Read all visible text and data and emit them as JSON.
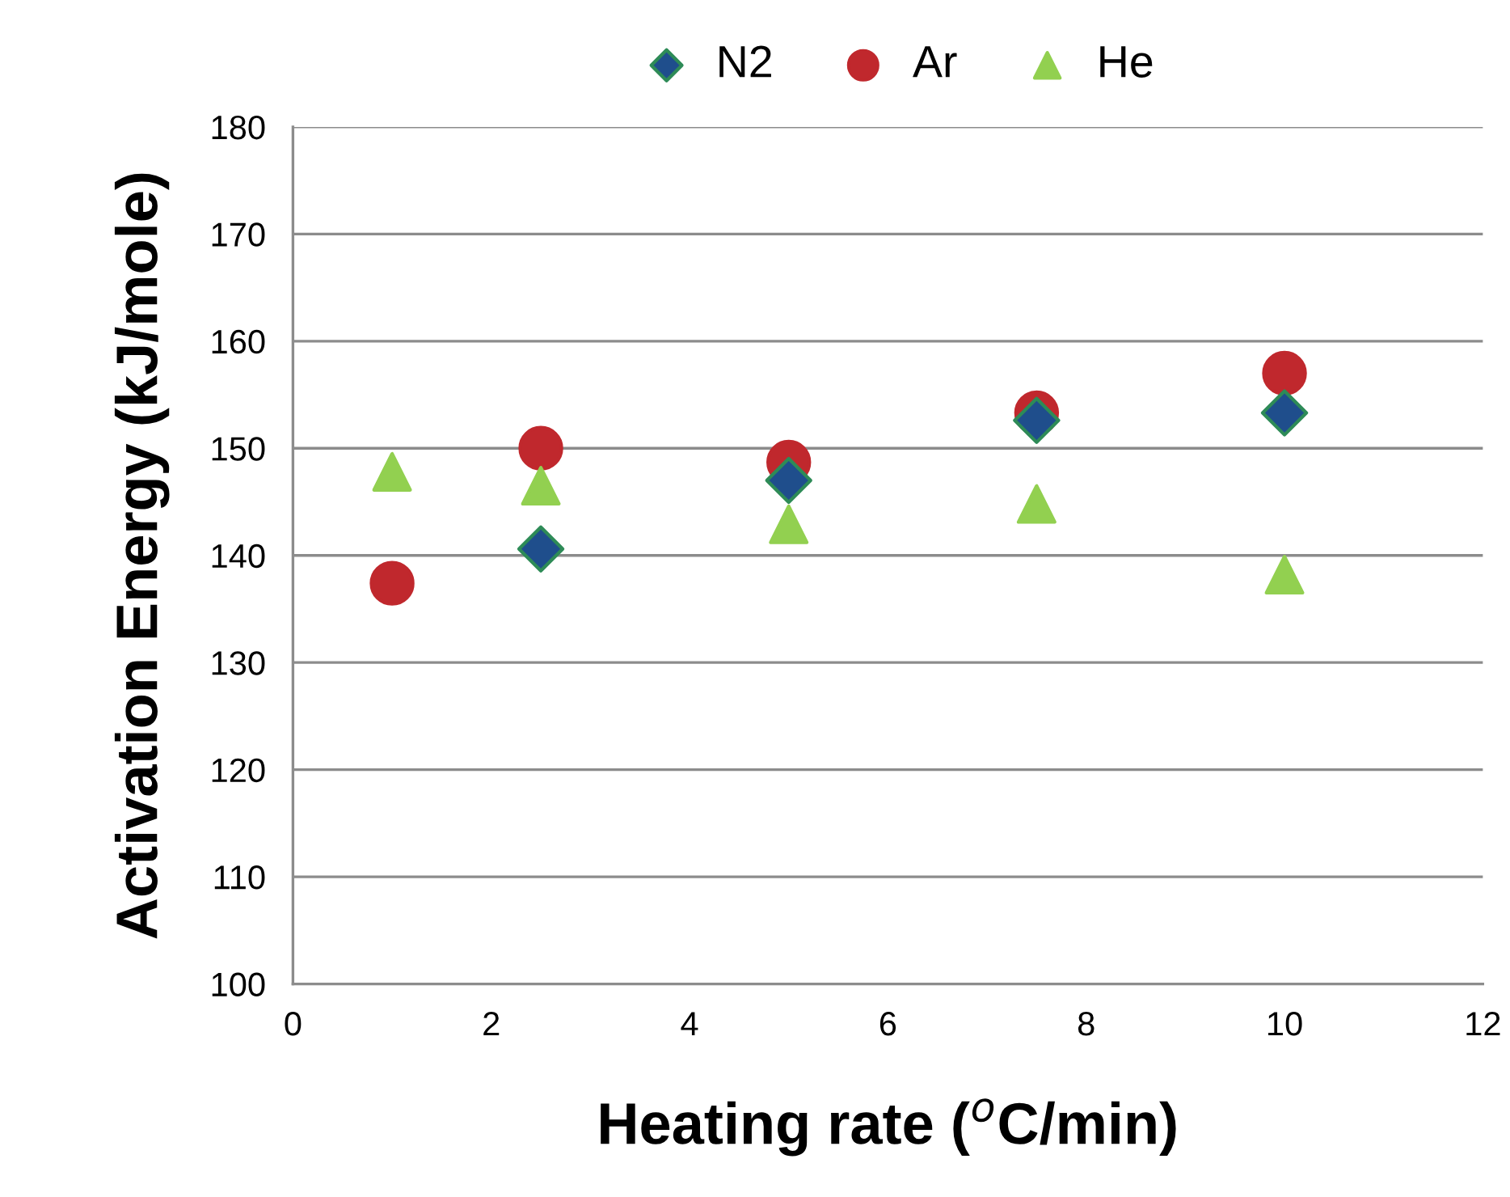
{
  "chart_data": {
    "type": "scatter",
    "xlabel": "Heating rate ($^{o}$C/min)",
    "ylabel": "Activation Energy (kJ/mole)",
    "x": [
      1,
      2.5,
      5,
      7.5,
      10
    ],
    "series": [
      {
        "name": "N2",
        "color": "#1f4e8c",
        "marker": "diamond",
        "values": [
          null,
          140.6,
          147,
          152.6,
          153.3
        ]
      },
      {
        "name": "Ar",
        "color": "#c0282d",
        "marker": "circle",
        "values": [
          137.4,
          150,
          148.7,
          153.3,
          157
        ]
      },
      {
        "name": "He",
        "color": "#92d050",
        "marker": "triangle",
        "values": [
          147.8,
          146.5,
          142.9,
          144.8,
          138.2
        ]
      }
    ],
    "xlim": [
      0,
      12
    ],
    "xticks": [
      0,
      2,
      4,
      6,
      8,
      10,
      12
    ],
    "ylim": [
      100,
      180
    ],
    "yticks": [
      100,
      110,
      120,
      130,
      140,
      150,
      160,
      170,
      180
    ],
    "grid": "y",
    "legend": "top"
  }
}
